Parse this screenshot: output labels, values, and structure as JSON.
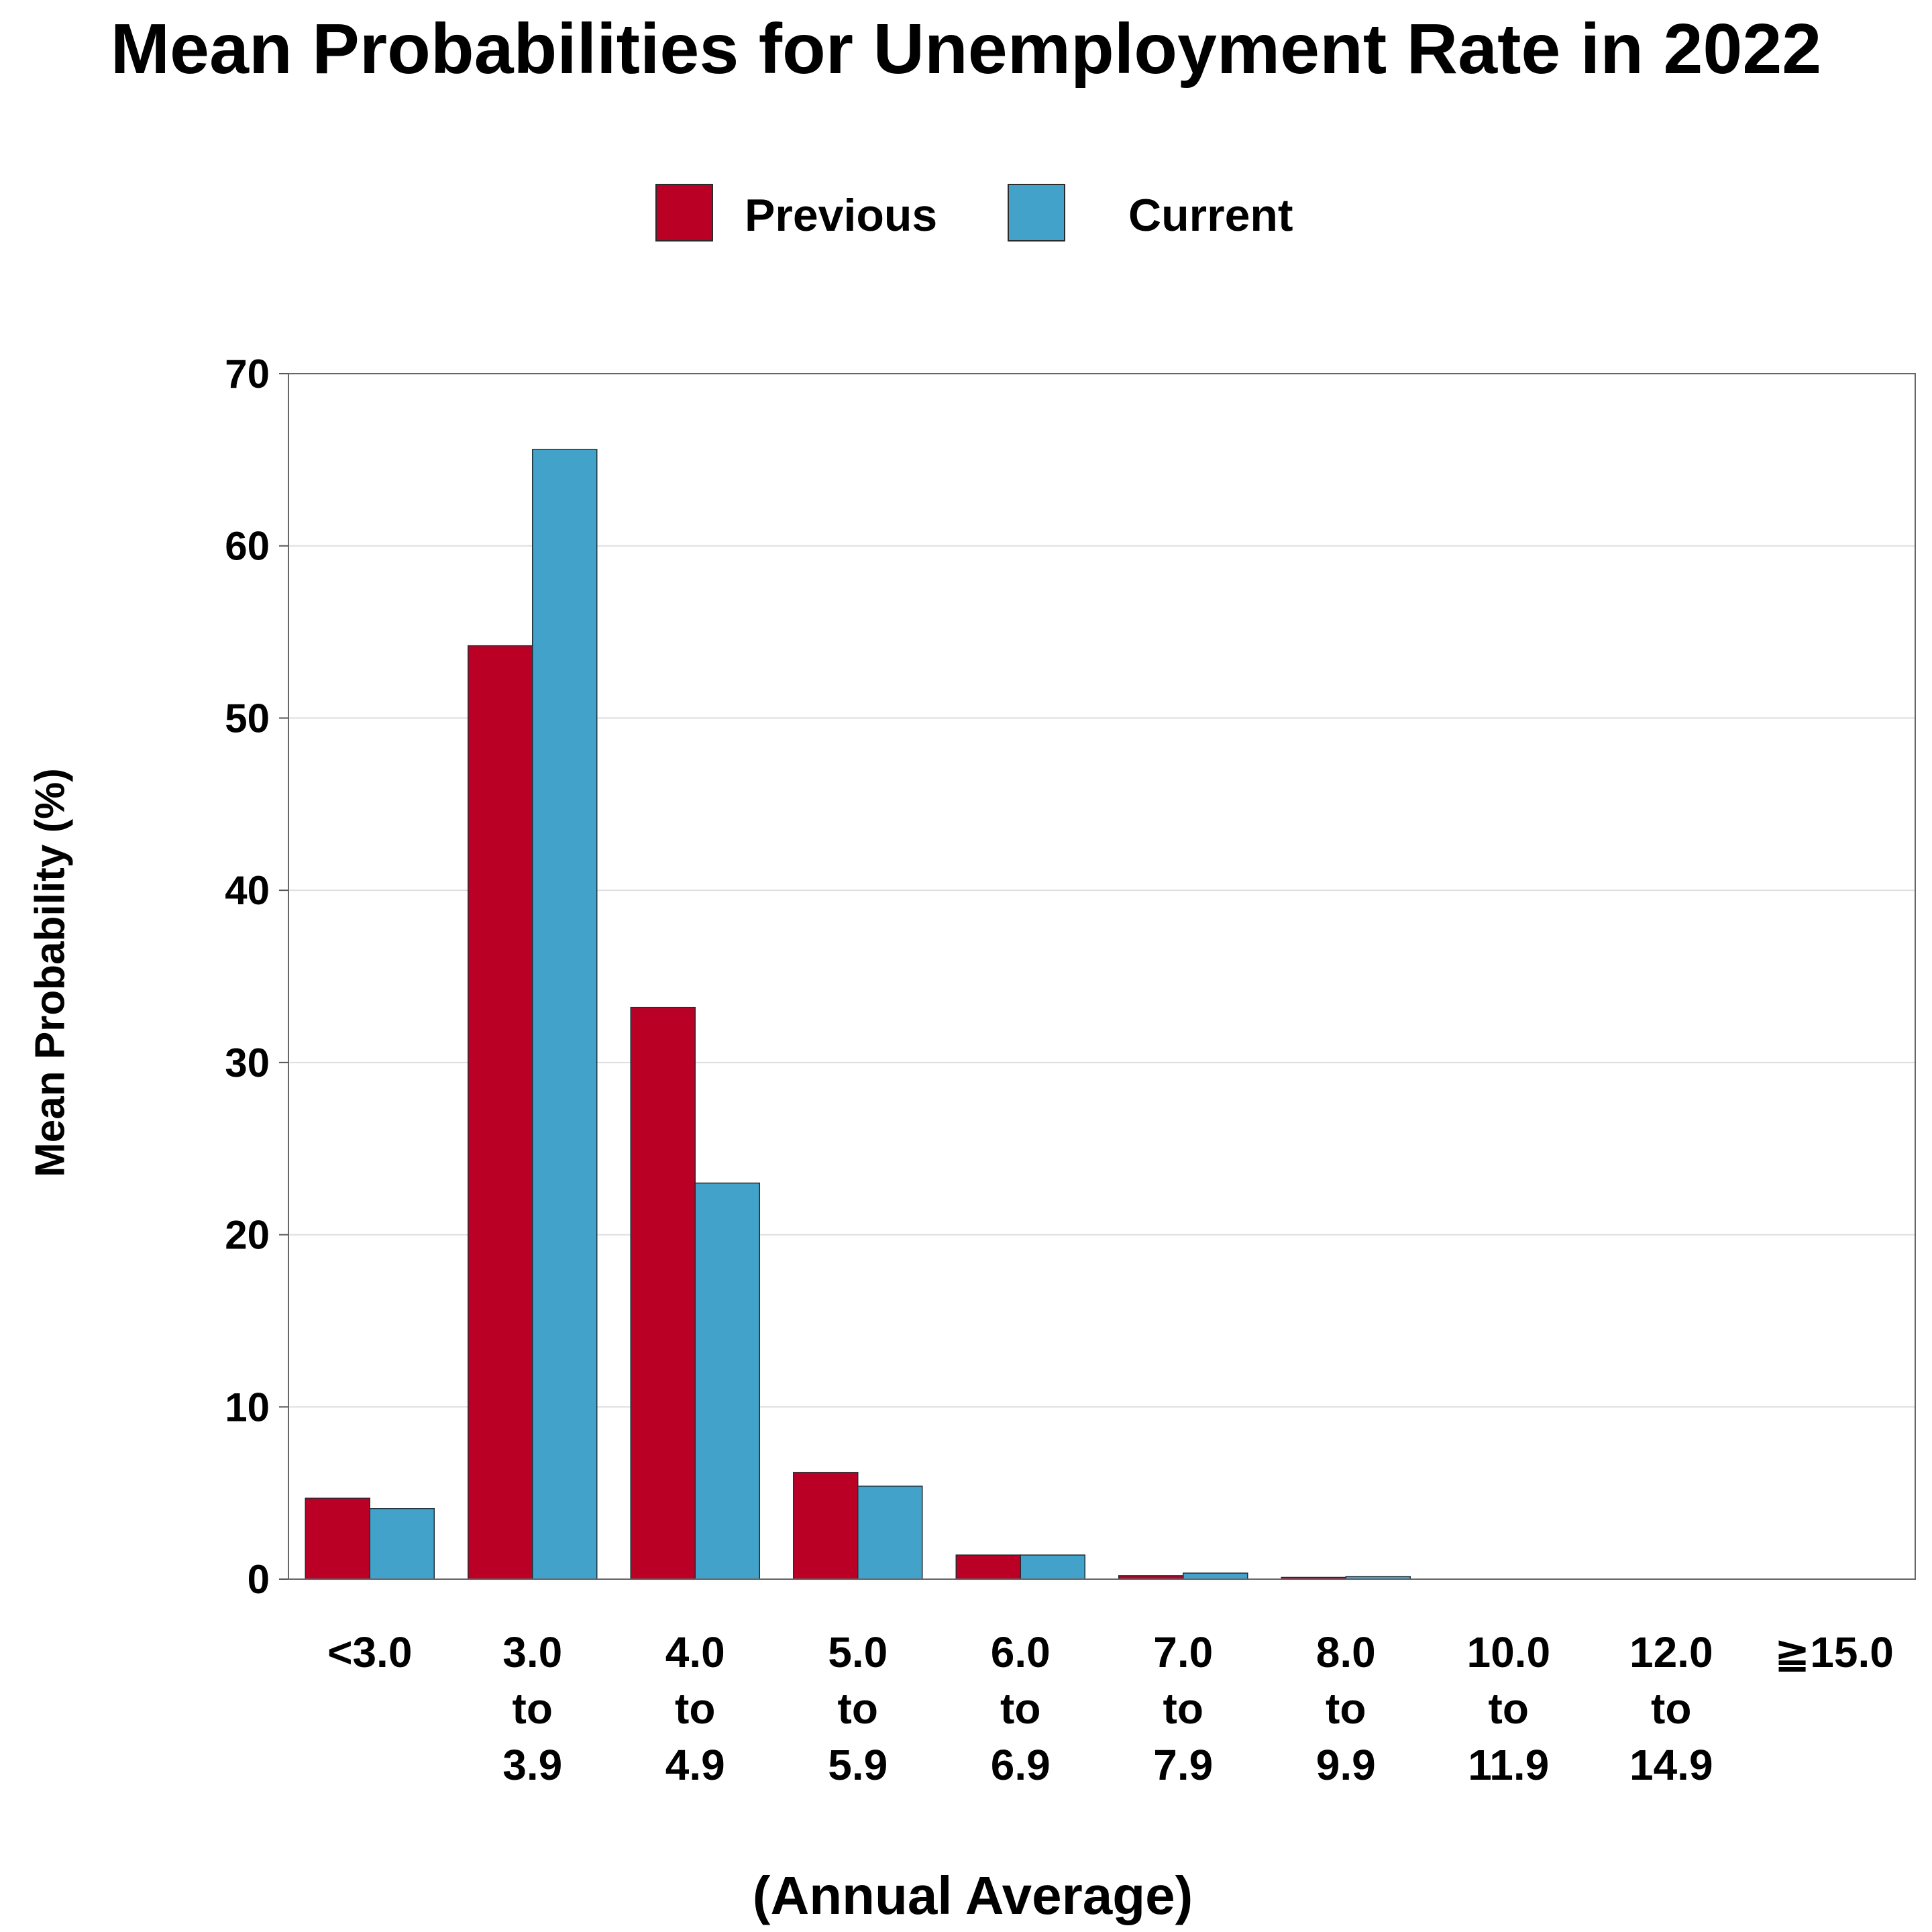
{
  "chart_data": {
    "type": "bar",
    "title": "Mean Probabilities for Unemployment Rate in 2022",
    "xlabel": "(Annual Average)",
    "ylabel": "Mean Probability (%)",
    "ylim": [
      0,
      70
    ],
    "yticks": [
      "0",
      "10",
      "20",
      "30",
      "40",
      "50",
      "60",
      "70"
    ],
    "grid": true,
    "legend_position": "top-center",
    "categories": [
      [
        "<3.0"
      ],
      [
        "3.0",
        "to",
        "3.9"
      ],
      [
        "4.0",
        "to",
        "4.9"
      ],
      [
        "5.0",
        "to",
        "5.9"
      ],
      [
        "6.0",
        "to",
        "6.9"
      ],
      [
        "7.0",
        "to",
        "7.9"
      ],
      [
        "8.0",
        "to",
        "9.9"
      ],
      [
        "10.0",
        "to",
        "11.9"
      ],
      [
        "12.0",
        "to",
        "14.9"
      ],
      [
        "≧15.0"
      ]
    ],
    "series": [
      {
        "name": "Previous",
        "color": "#bb0026",
        "values": [
          4.7,
          54.2,
          33.2,
          6.2,
          1.4,
          0.2,
          0.1,
          0.0,
          0.0,
          0.0
        ]
      },
      {
        "name": "Current",
        "color": "#42a2ca",
        "values": [
          4.1,
          65.6,
          23.0,
          5.4,
          1.4,
          0.35,
          0.15,
          0.0,
          0.0,
          0.0
        ]
      }
    ]
  }
}
